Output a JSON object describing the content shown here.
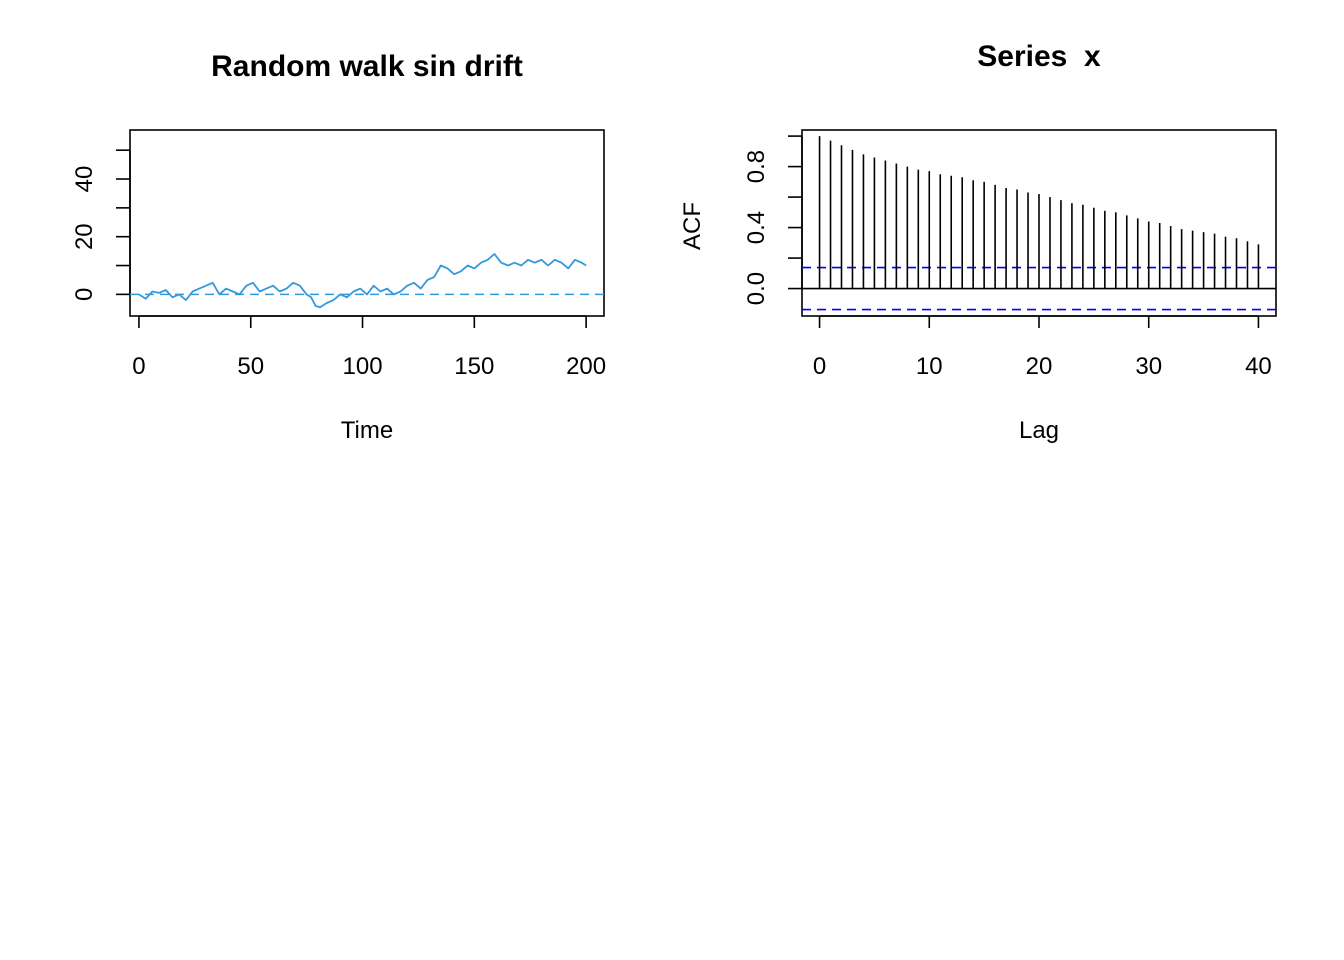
{
  "chart_data": [
    {
      "type": "line",
      "title": "Random walk sin drift",
      "xlabel": "Time",
      "ylabel": "",
      "xlim": [
        -4,
        208
      ],
      "ylim": [
        -7.5,
        57
      ],
      "x_ticks": [
        "0",
        "50",
        "100",
        "150",
        "200"
      ],
      "x_tick_values": [
        0,
        50,
        100,
        150,
        200
      ],
      "y_ticks": [
        "0",
        "20",
        "40"
      ],
      "y_tick_values": [
        0,
        20,
        40
      ],
      "y_minor_tick_values": [
        10,
        30,
        50
      ],
      "line_color": "#3399DD",
      "reference_line": {
        "y": 0,
        "style": "dashed",
        "color": "#3399DD"
      },
      "series": [
        {
          "x": [
            0,
            3,
            6,
            9,
            12,
            15,
            18,
            21,
            24,
            27,
            30,
            33,
            36,
            39,
            42,
            45,
            48,
            51,
            54,
            57,
            60,
            63,
            66,
            69,
            72,
            75,
            77,
            79,
            81,
            84,
            87,
            90,
            93,
            96,
            99,
            102,
            105,
            108,
            111,
            114,
            117,
            120,
            123,
            126,
            129,
            132,
            135,
            138,
            141,
            144,
            147,
            150,
            153,
            156,
            159,
            162,
            165,
            168,
            171,
            174,
            177,
            180,
            183,
            186,
            189,
            192,
            195,
            198,
            200
          ],
          "values": [
            0,
            -1.5,
            1,
            0.5,
            1.5,
            -1,
            0,
            -2,
            1,
            2,
            3,
            4,
            0,
            2,
            1,
            0,
            3,
            4,
            1,
            2,
            3,
            1,
            2,
            4,
            3,
            0,
            -1,
            -4,
            -4.5,
            -3,
            -2,
            0,
            -1,
            1,
            2,
            0,
            3,
            1,
            2,
            0,
            1,
            3,
            4,
            2,
            5,
            6,
            10,
            9,
            7,
            8,
            10,
            9,
            11,
            12,
            14,
            11,
            10,
            11,
            10,
            12,
            11,
            12,
            10,
            12,
            11,
            9,
            12,
            11,
            10
          ]
        }
      ]
    },
    {
      "type": "bar",
      "title": "Series  x",
      "xlabel": "Lag",
      "ylabel": "ACF",
      "xlim": [
        -1.6,
        41.6
      ],
      "ylim": [
        -0.18,
        1.04
      ],
      "x_ticks": [
        "0",
        "10",
        "20",
        "30",
        "40"
      ],
      "x_tick_values": [
        0,
        10,
        20,
        30,
        40
      ],
      "y_ticks": [
        "0.0",
        "0.4",
        "0.8"
      ],
      "y_tick_values": [
        0,
        0.4,
        0.8
      ],
      "y_minor_tick_values": [
        0.2,
        0.6,
        1.0
      ],
      "confidence_band": {
        "upper": 0.138,
        "lower": -0.138,
        "style": "dashed",
        "color": "#0000FF"
      },
      "lags": [
        0,
        1,
        2,
        3,
        4,
        5,
        6,
        7,
        8,
        9,
        10,
        11,
        12,
        13,
        14,
        15,
        16,
        17,
        18,
        19,
        20,
        21,
        22,
        23,
        24,
        25,
        26,
        27,
        28,
        29,
        30,
        31,
        32,
        33,
        34,
        35,
        36,
        37,
        38,
        39,
        40
      ],
      "values": [
        1.0,
        0.97,
        0.94,
        0.91,
        0.88,
        0.86,
        0.84,
        0.82,
        0.8,
        0.78,
        0.77,
        0.75,
        0.74,
        0.73,
        0.71,
        0.7,
        0.68,
        0.66,
        0.65,
        0.63,
        0.62,
        0.6,
        0.58,
        0.56,
        0.55,
        0.53,
        0.51,
        0.5,
        0.48,
        0.46,
        0.44,
        0.43,
        0.41,
        0.39,
        0.38,
        0.37,
        0.36,
        0.34,
        0.33,
        0.31,
        0.29
      ]
    }
  ]
}
